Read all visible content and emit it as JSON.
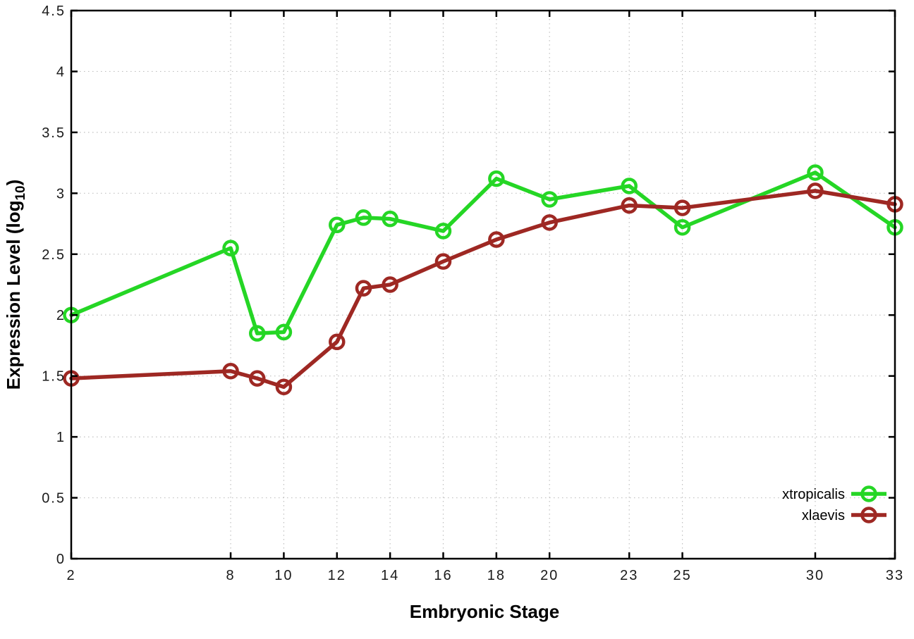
{
  "chart_data": {
    "type": "line",
    "title": "",
    "xlabel": "Embryonic Stage",
    "ylabel": {
      "prefix": "Expression Level (log",
      "subscript": "10",
      "suffix": ")"
    },
    "xlim": [
      2,
      33
    ],
    "ylim": [
      0,
      4.5
    ],
    "grid": true,
    "grid_style": "dotted",
    "legend_position": "inside-bottom-right",
    "x": [
      2,
      8,
      9,
      10,
      12,
      13,
      14,
      16,
      18,
      20,
      23,
      25,
      30,
      33
    ],
    "xticks": {
      "values": [
        2,
        8,
        10,
        12,
        14,
        16,
        18,
        20,
        23,
        25,
        30,
        33
      ],
      "labels": [
        "2",
        "8",
        "10",
        "12",
        "14",
        "16",
        "18",
        "20",
        "23",
        "25",
        "30",
        "33"
      ]
    },
    "yticks": {
      "values": [
        0,
        0.5,
        1,
        1.5,
        2,
        2.5,
        3,
        3.5,
        4,
        4.5
      ],
      "labels": [
        "0",
        "0.5",
        "1",
        "1.5",
        "2",
        "2.5",
        "3",
        "3.5",
        "4",
        "4.5"
      ]
    },
    "series": [
      {
        "name": "xtropicalis",
        "color": "#25d625",
        "marker": "open-circle",
        "values": [
          2.0,
          2.55,
          1.85,
          1.86,
          2.74,
          2.8,
          2.79,
          2.69,
          3.12,
          2.95,
          3.06,
          2.72,
          3.17,
          2.72
        ]
      },
      {
        "name": "xlaevis",
        "color": "#9e2823",
        "marker": "open-circle",
        "values": [
          1.48,
          1.54,
          1.48,
          1.41,
          1.78,
          2.22,
          2.25,
          2.44,
          2.62,
          2.76,
          2.9,
          2.88,
          3.02,
          2.91
        ]
      }
    ],
    "colors": {
      "background": "#ffffff",
      "frame": "#000000",
      "grid": "#c0c0c0",
      "tick": "#000000",
      "text": "#000000"
    }
  }
}
